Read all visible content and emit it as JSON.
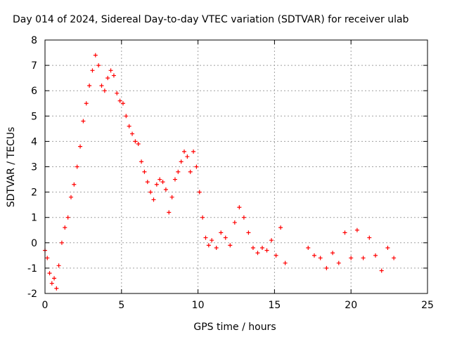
{
  "chart_data": {
    "type": "scatter",
    "title": "Day 014 of 2024, Sidereal Day-to-day VTEC variation (SDTVAR) for receiver ulab",
    "xlabel": "GPS time / hours",
    "ylabel": "SDTVAR / TECUs",
    "xlim": [
      0,
      25
    ],
    "ylim": [
      -2,
      8
    ],
    "xticks": [
      "0",
      "5",
      "10",
      "15",
      "20",
      "25"
    ],
    "yticks": [
      "-2",
      "-1",
      "0",
      "1",
      "2",
      "3",
      "4",
      "5",
      "6",
      "7",
      "8"
    ],
    "xtick_values": [
      0,
      5,
      10,
      15,
      20,
      25
    ],
    "ytick_values": [
      -2,
      -1,
      0,
      1,
      2,
      3,
      4,
      5,
      6,
      7,
      8
    ],
    "grid": true,
    "marker": "+",
    "color": "#ff0000",
    "series": [
      {
        "name": "SDTVAR",
        "x": [
          0.0,
          0.15,
          0.3,
          0.45,
          0.6,
          0.75,
          0.9,
          1.1,
          1.3,
          1.5,
          1.7,
          1.9,
          2.1,
          2.3,
          2.5,
          2.7,
          2.9,
          3.1,
          3.3,
          3.5,
          3.7,
          3.9,
          4.1,
          4.3,
          4.5,
          4.7,
          4.9,
          5.1,
          5.3,
          5.5,
          5.7,
          5.9,
          6.1,
          6.3,
          6.5,
          6.7,
          6.9,
          7.1,
          7.3,
          7.5,
          7.7,
          7.9,
          8.1,
          8.3,
          8.5,
          8.7,
          8.9,
          9.1,
          9.3,
          9.5,
          9.7,
          9.9,
          10.1,
          10.3,
          10.5,
          10.7,
          10.9,
          11.2,
          11.5,
          11.8,
          12.1,
          12.4,
          12.7,
          13.0,
          13.3,
          13.6,
          13.9,
          14.2,
          14.5,
          14.8,
          15.1,
          15.4,
          15.7,
          17.2,
          17.6,
          18.0,
          18.4,
          18.8,
          19.2,
          19.6,
          20.0,
          20.4,
          20.8,
          21.2,
          21.6,
          22.0,
          22.4,
          22.8
        ],
        "y": [
          -0.3,
          -0.6,
          -1.2,
          -1.6,
          -1.4,
          -1.8,
          -0.9,
          0.0,
          0.6,
          1.0,
          1.8,
          2.3,
          3.0,
          3.8,
          4.8,
          5.5,
          6.2,
          6.8,
          7.4,
          7.0,
          6.2,
          6.0,
          6.5,
          6.8,
          6.6,
          5.9,
          5.6,
          5.5,
          5.0,
          4.6,
          4.3,
          4.0,
          3.9,
          3.2,
          2.8,
          2.4,
          2.0,
          1.7,
          2.3,
          2.5,
          2.4,
          2.1,
          1.2,
          1.8,
          2.5,
          2.8,
          3.2,
          3.6,
          3.4,
          2.8,
          3.6,
          3.0,
          2.0,
          1.0,
          0.2,
          -0.1,
          0.1,
          -0.2,
          0.4,
          0.2,
          -0.1,
          0.8,
          1.4,
          1.0,
          0.4,
          -0.2,
          -0.4,
          -0.2,
          -0.3,
          0.1,
          -0.5,
          0.6,
          -0.8,
          -0.2,
          -0.5,
          -0.6,
          -1.0,
          -0.4,
          -0.8,
          0.4,
          -0.6,
          0.5,
          -0.6,
          0.2,
          -0.5,
          -1.1,
          -0.2,
          -0.6
        ]
      }
    ]
  }
}
